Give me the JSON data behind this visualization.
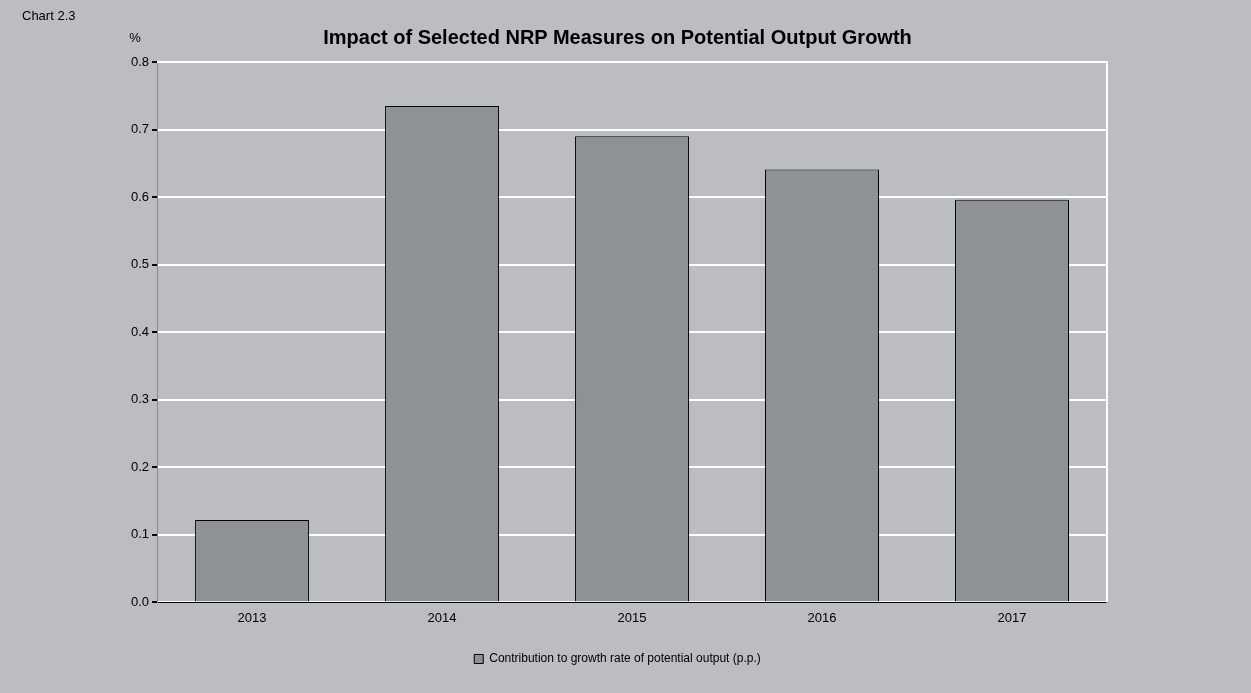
{
  "chart_data": {
    "type": "bar",
    "title": "Impact of Selected NRP Measures on Potential Output Growth",
    "ylabel": "%",
    "annotations": [
      "Chart 2.3"
    ],
    "categories": [
      "2013",
      "2014",
      "2015",
      "2016",
      "2017"
    ],
    "series": [
      {
        "name": "Contribution to growth rate of potential output (p.p.)",
        "color": "#8e9196",
        "values": [
          0.122,
          0.735,
          0.69,
          0.641,
          0.596
        ]
      }
    ],
    "ylim": [
      0,
      0.8
    ],
    "yticks": [
      {
        "value": 0,
        "label": "0.0"
      },
      {
        "value": 0.1,
        "label": "0.1"
      },
      {
        "value": 0.2,
        "label": "0.2"
      },
      {
        "value": 0.3,
        "label": "0.3"
      },
      {
        "value": 0.4,
        "label": "0.4"
      },
      {
        "value": 0.5,
        "label": "0.5"
      },
      {
        "value": 0.6,
        "label": "0.6"
      },
      {
        "value": 0.7,
        "label": "0.7"
      },
      {
        "value": 0.8,
        "label": "0.8"
      }
    ],
    "grid": "y",
    "legend": "bottom"
  }
}
